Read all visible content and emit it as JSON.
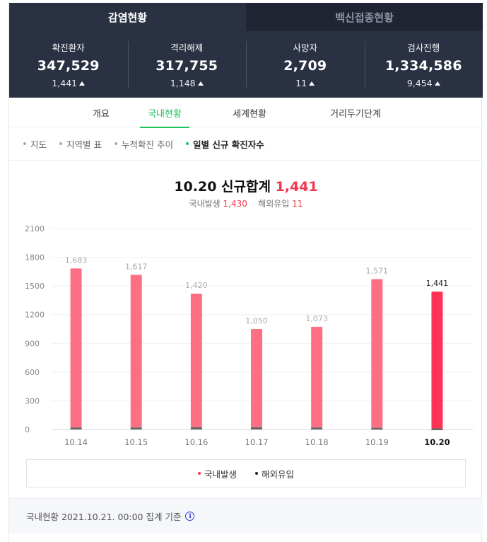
{
  "top_tabs": [
    "감염현황",
    "백신접종현황"
  ],
  "stats": [
    {
      "label": "확진환자",
      "value": "347,529",
      "delta": "1,441"
    },
    {
      "label": "격리해제",
      "value": "317,755",
      "delta": "1,148"
    },
    {
      "label": "사망자",
      "value": "2,709",
      "delta": "11"
    },
    {
      "label": "검사진행",
      "value": "1,334,586",
      "delta": "9,454"
    }
  ],
  "sub_tabs": [
    "개요",
    "국내현황",
    "세계현황",
    "거리두기단계"
  ],
  "filters": [
    "지도",
    "지역별 표",
    "누적확진 추이",
    "일별 신규 확진자수"
  ],
  "headline": {
    "date_title": "10.20 신규합계",
    "total": "1,441"
  },
  "subline": {
    "domestic_label": "국내발생",
    "domestic_value": "1,430",
    "overseas_label": "해외유입",
    "overseas_value": "11"
  },
  "chart_data": {
    "type": "bar",
    "categories": [
      "10.14",
      "10.15",
      "10.16",
      "10.17",
      "10.18",
      "10.19",
      "10.20"
    ],
    "series": [
      {
        "name": "국내발생",
        "values": [
          1662,
          1596,
          1396,
          1026,
          1052,
          1554,
          1430
        ]
      },
      {
        "name": "해외유입",
        "values": [
          21,
          21,
          24,
          24,
          21,
          17,
          11
        ]
      }
    ],
    "totals": [
      "1,683",
      "1,617",
      "1,420",
      "1,050",
      "1,073",
      "1,571",
      "1,441"
    ],
    "yticks": [
      "0",
      "300",
      "600",
      "900",
      "1200",
      "1500",
      "1800",
      "2100"
    ],
    "ylim": [
      0,
      2100
    ],
    "colors": {
      "domestic": "#ff6f83",
      "domestic_latest": "#ff3355",
      "overseas": "#666666"
    }
  },
  "legend": [
    {
      "label": "국내발생",
      "color": "#ff3355"
    },
    {
      "label": "해외유입",
      "color": "#222222"
    }
  ],
  "footer": {
    "text": "국내현황 2021.10.21. 00:00 집계 기준"
  }
}
